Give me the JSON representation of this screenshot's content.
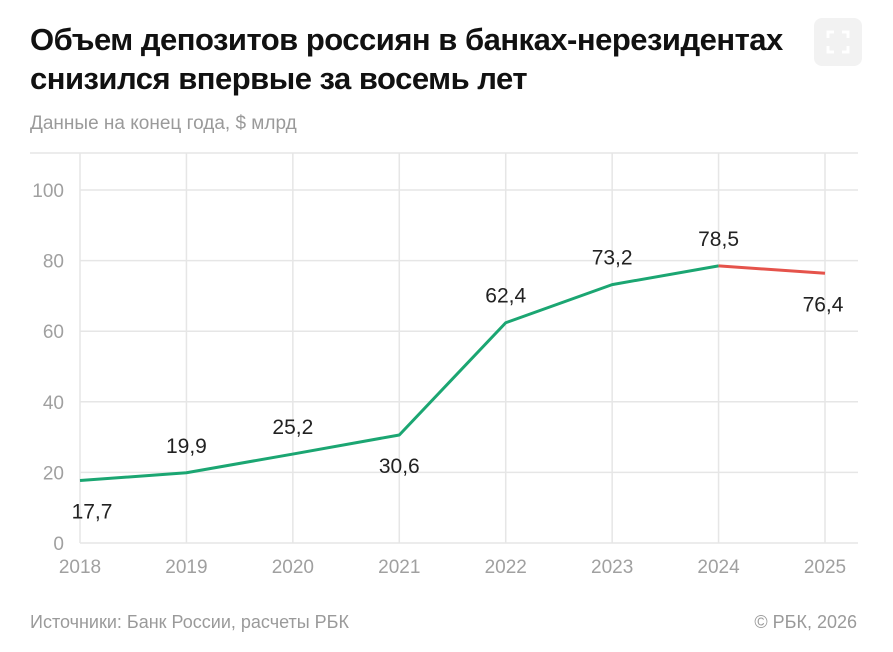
{
  "title": "Объем депозитов россиян в банках-нерезидентах снизился впервые за восемь лет",
  "subtitle": "Данные на конец года, $ млрд",
  "source": "Источники: Банк России, расчеты РБК",
  "copyright": "© РБК, 2026",
  "expand_icon": "fullscreen-icon",
  "chart_data": {
    "type": "line",
    "title": "Объем депозитов россиян в банках-нерезидентах снизился впервые за восемь лет",
    "subtitle": "Данные на конец года, $ млрд",
    "categories": [
      "2018",
      "2019",
      "2020",
      "2021",
      "2022",
      "2023",
      "2024",
      "2025"
    ],
    "values": [
      17.7,
      19.9,
      25.2,
      30.6,
      62.4,
      73.2,
      78.5,
      76.4
    ],
    "labels": [
      "17,7",
      "19,9",
      "25,2",
      "30,6",
      "62,4",
      "73,2",
      "78,5",
      "76,4"
    ],
    "ylim": [
      0,
      100
    ],
    "yticks": [
      "0",
      "20",
      "40",
      "60",
      "80",
      "100"
    ],
    "grid": true,
    "colors": {
      "rise": "#1ba672",
      "decline": "#e5534b"
    },
    "decline_segment": "2024-2025"
  }
}
